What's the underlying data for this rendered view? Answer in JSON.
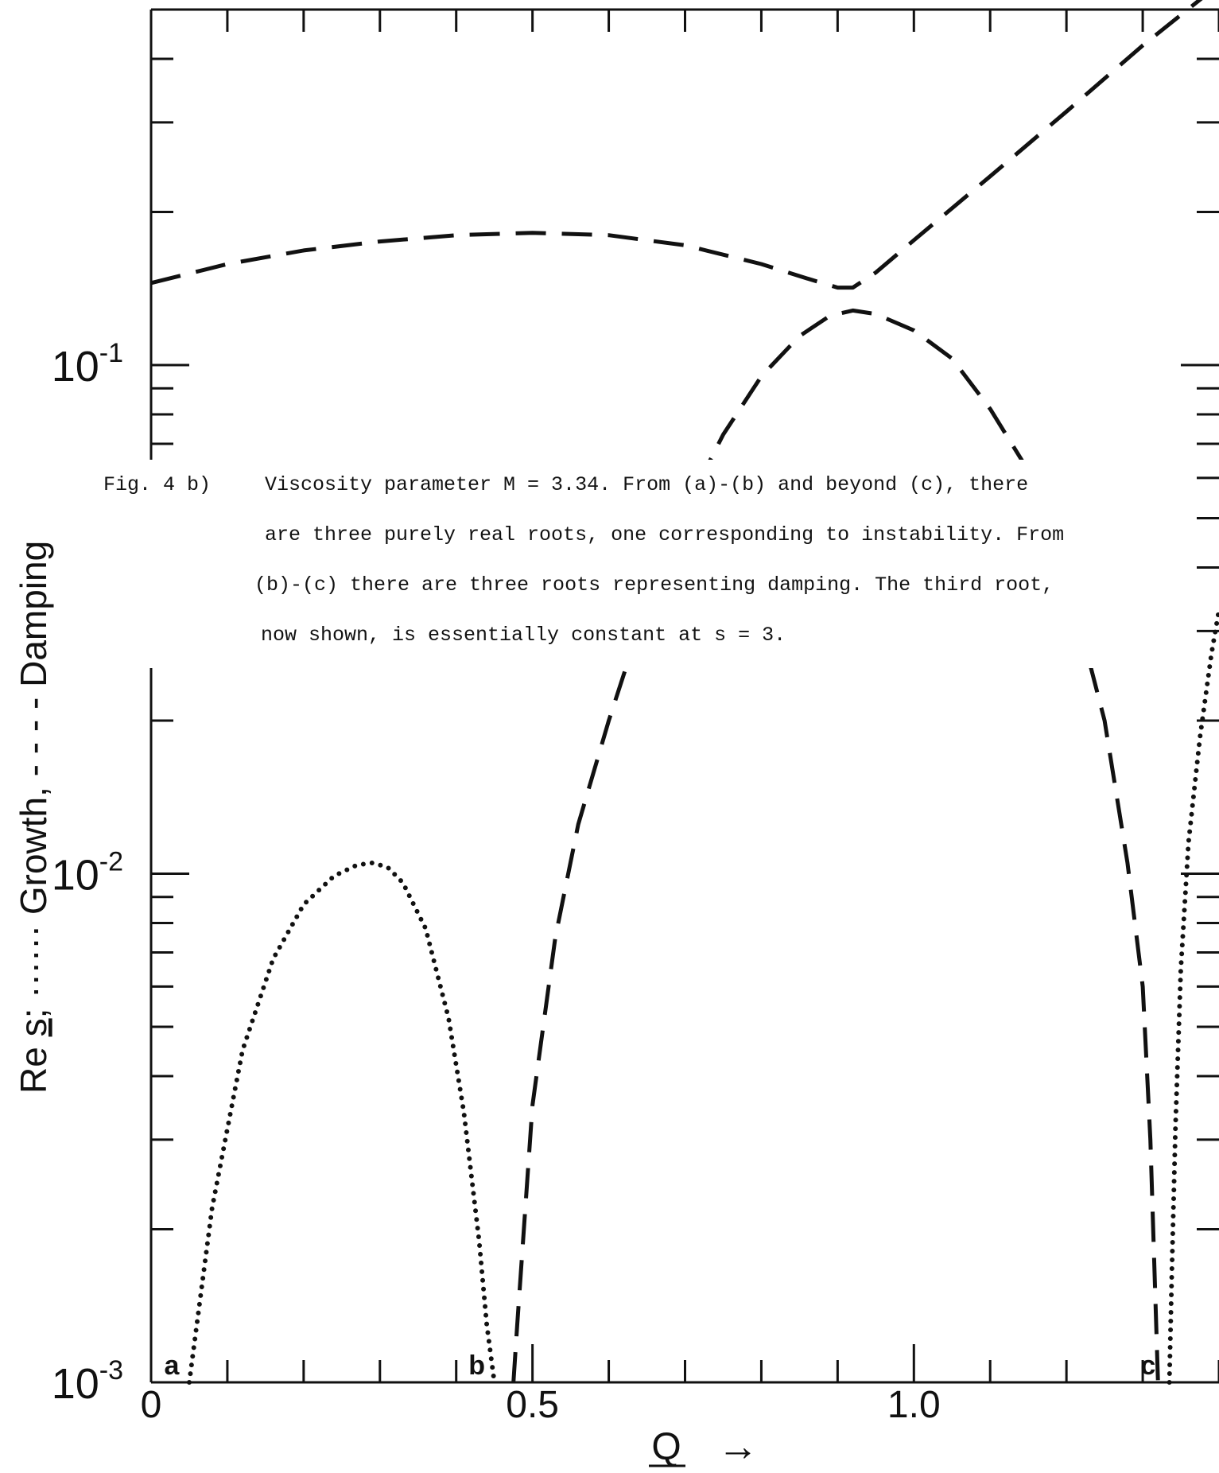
{
  "chart_data": {
    "type": "line",
    "xlabel": "Q",
    "ylabel": "Re s; ...... Growth, ---- Damping",
    "ylabel_parts": [
      "Re",
      "s",
      ";",
      "······",
      "Growth,",
      "- - - -",
      "Damping"
    ],
    "x_arrow": "→",
    "xlim": [
      0,
      1.4
    ],
    "ylim": [
      0.001,
      0.5
    ],
    "yscale": "log",
    "x_tick_labels": [
      "0",
      "0.5",
      "1.0"
    ],
    "x_tick_values": [
      0,
      0.5,
      1.0
    ],
    "y_tick_labels": [
      {
        "base": "10",
        "exp": "-3",
        "value": 0.001
      },
      {
        "base": "10",
        "exp": "-2",
        "value": 0.01
      },
      {
        "base": "10",
        "exp": "-1",
        "value": 0.1
      }
    ],
    "point_labels": [
      {
        "text": "a",
        "x": 0.05
      },
      {
        "text": "b",
        "x": 0.45
      },
      {
        "text": "c",
        "x": 1.33
      }
    ],
    "series": [
      {
        "style": "dotted",
        "x": [
          0.05,
          0.08,
          0.12,
          0.16,
          0.2,
          0.24,
          0.27,
          0.29,
          0.31,
          0.33,
          0.36,
          0.39,
          0.41,
          0.43,
          0.44,
          0.45
        ],
        "y": [
          0.001,
          0.0022,
          0.0045,
          0.0068,
          0.0087,
          0.0099,
          0.0104,
          0.0105,
          0.0103,
          0.0096,
          0.0078,
          0.0052,
          0.0034,
          0.0019,
          0.0013,
          0.001
        ]
      },
      {
        "style": "dashed",
        "x": [
          0.0,
          0.1,
          0.2,
          0.3,
          0.4,
          0.5,
          0.6,
          0.7,
          0.8,
          0.86,
          0.9,
          0.92,
          0.95,
          1.0,
          1.1,
          1.2,
          1.3,
          1.4
        ],
        "y": [
          0.145,
          0.158,
          0.168,
          0.175,
          0.18,
          0.182,
          0.18,
          0.172,
          0.158,
          0.148,
          0.142,
          0.142,
          0.152,
          0.176,
          0.235,
          0.315,
          0.425,
          0.56
        ]
      },
      {
        "style": "dashed",
        "x": [
          0.475,
          0.48,
          0.5,
          0.53,
          0.56,
          0.6,
          0.65,
          0.7,
          0.75,
          0.8,
          0.85,
          0.89,
          0.92,
          0.95,
          1.0,
          1.05,
          1.1,
          1.15,
          1.2,
          1.25,
          1.28,
          1.3,
          1.31,
          1.32
        ],
        "y": [
          0.001,
          0.0013,
          0.0035,
          0.0075,
          0.0125,
          0.02,
          0.034,
          0.052,
          0.073,
          0.095,
          0.114,
          0.125,
          0.128,
          0.126,
          0.117,
          0.103,
          0.082,
          0.062,
          0.039,
          0.02,
          0.0105,
          0.006,
          0.003,
          0.001
        ]
      },
      {
        "style": "dotted",
        "x": [
          1.335,
          1.338,
          1.343,
          1.35,
          1.36,
          1.375,
          1.39,
          1.4
        ],
        "y": [
          0.001,
          0.0016,
          0.0032,
          0.0065,
          0.0115,
          0.0185,
          0.027,
          0.033
        ]
      }
    ],
    "caption": {
      "label": "Fig. 4 b)",
      "lines": [
        "Viscosity parameter M =  3.34.  From (a)-(b) and beyond (c), there",
        "are three purely real roots, one corresponding to instability.  From",
        "(b)-(c) there are three roots representing damping.  The third root,",
        "now shown, is essentially constant at s =  3."
      ]
    },
    "grid": false,
    "legend": "none"
  }
}
